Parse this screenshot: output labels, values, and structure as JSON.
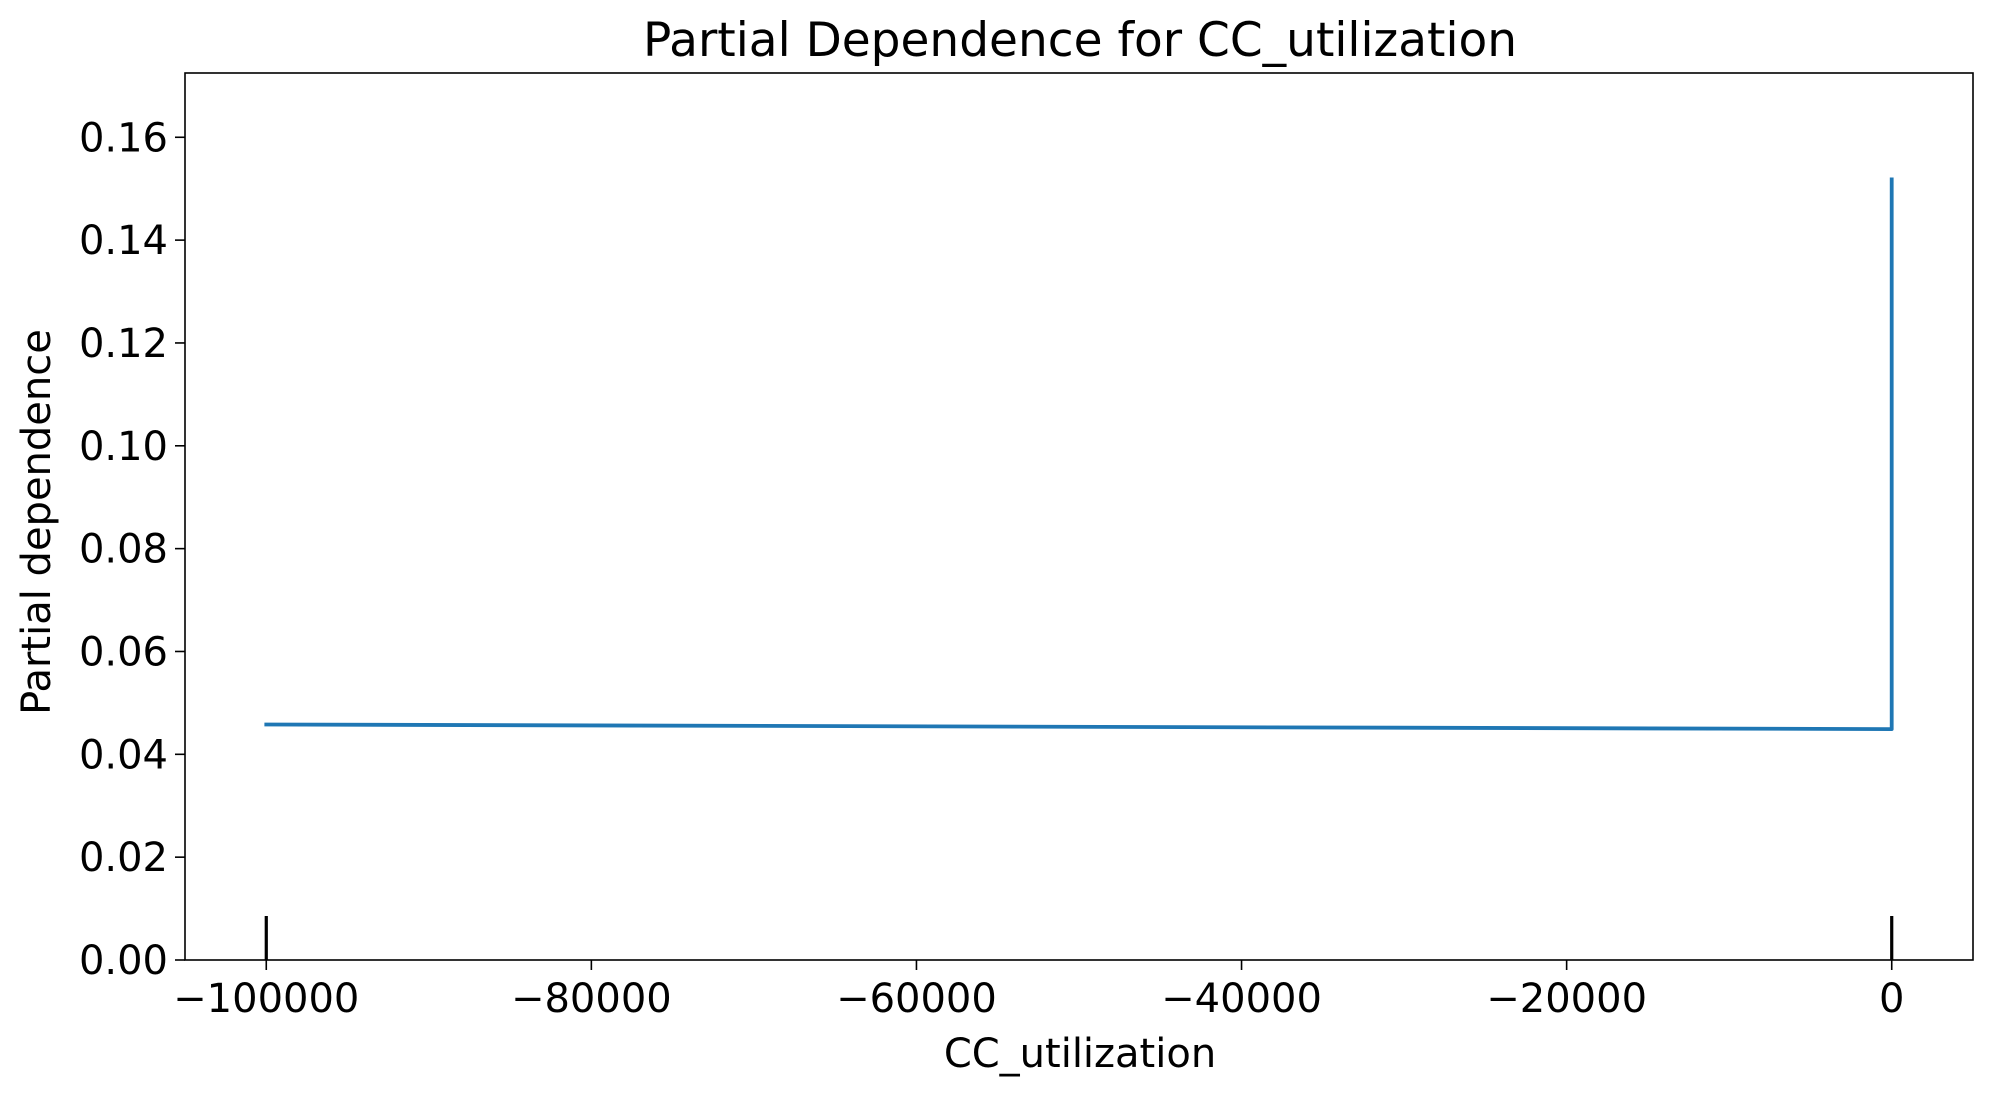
{
  "chart_data": {
    "type": "line",
    "title": "Partial Dependence for CC_utilization",
    "xlabel": "CC_utilization",
    "ylabel": "Partial dependence",
    "xlim": [
      -105000,
      5000
    ],
    "ylim": [
      0.0,
      0.1725
    ],
    "x_ticks": [
      -100000,
      -80000,
      -60000,
      -40000,
      -20000,
      0
    ],
    "x_tick_labels": [
      "−100000",
      "−80000",
      "−60000",
      "−40000",
      "−20000",
      "0"
    ],
    "y_ticks": [
      0.0,
      0.02,
      0.04,
      0.06,
      0.08,
      0.1,
      0.12,
      0.14,
      0.16
    ],
    "y_tick_labels": [
      "0.00",
      "0.02",
      "0.04",
      "0.06",
      "0.08",
      "0.10",
      "0.12",
      "0.14",
      "0.16"
    ],
    "grid": false,
    "series": [
      {
        "color": "#1f77b4",
        "x": [
          -100000,
          0,
          0,
          0
        ],
        "y": [
          0.0458,
          0.0449,
          0.0449,
          0.1518
        ]
      }
    ],
    "rug": {
      "x": [
        -100000,
        0
      ],
      "color": "#000000"
    }
  }
}
